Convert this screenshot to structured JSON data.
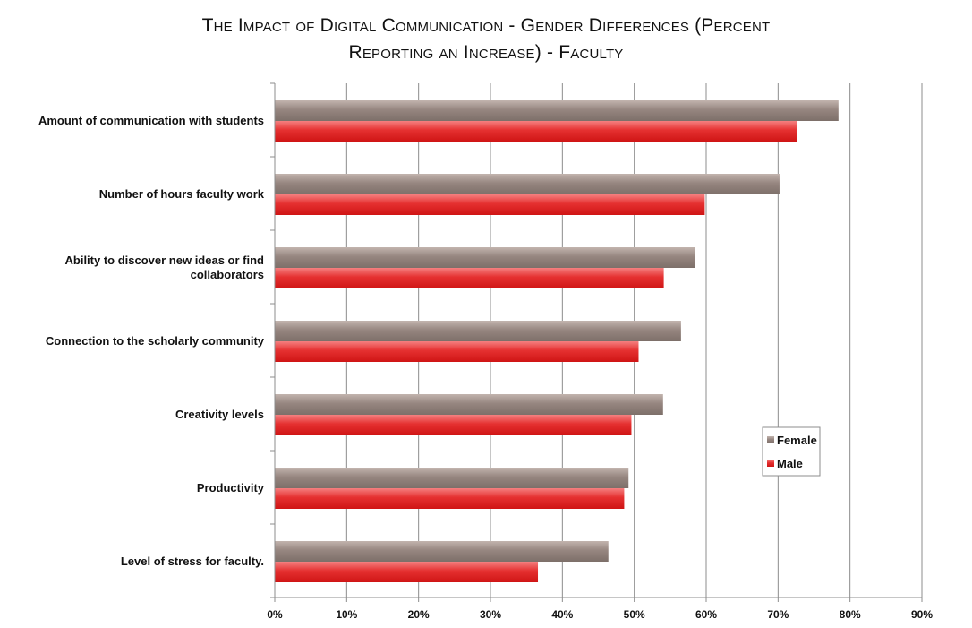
{
  "chart_data": {
    "type": "bar",
    "orientation": "horizontal",
    "title_lines": [
      "The Impact of Digital Communication - Gender Differences (Percent",
      "Reporting an Increase) - Faculty"
    ],
    "categories": [
      [
        "Amount of communication with students"
      ],
      [
        "Number of hours faculty work"
      ],
      [
        "Ability to discover new ideas or find",
        "collaborators"
      ],
      [
        "Connection to the scholarly community"
      ],
      [
        "Creativity levels"
      ],
      [
        "Productivity"
      ],
      [
        "Level of stress for faculty."
      ]
    ],
    "series": [
      {
        "name": "Female",
        "color": "#8f7f79",
        "values": [
          78.4,
          70.2,
          58.4,
          56.5,
          54.0,
          49.2,
          46.4
        ]
      },
      {
        "name": "Male",
        "color": "#e02e2e",
        "values": [
          72.6,
          59.8,
          54.1,
          50.6,
          49.6,
          48.6,
          36.6
        ]
      }
    ],
    "xlim": [
      0,
      90
    ],
    "xticks": [
      "0%",
      "10%",
      "20%",
      "30%",
      "40%",
      "50%",
      "60%",
      "70%",
      "80%",
      "90%"
    ],
    "grid": true,
    "legend_position": "right"
  }
}
